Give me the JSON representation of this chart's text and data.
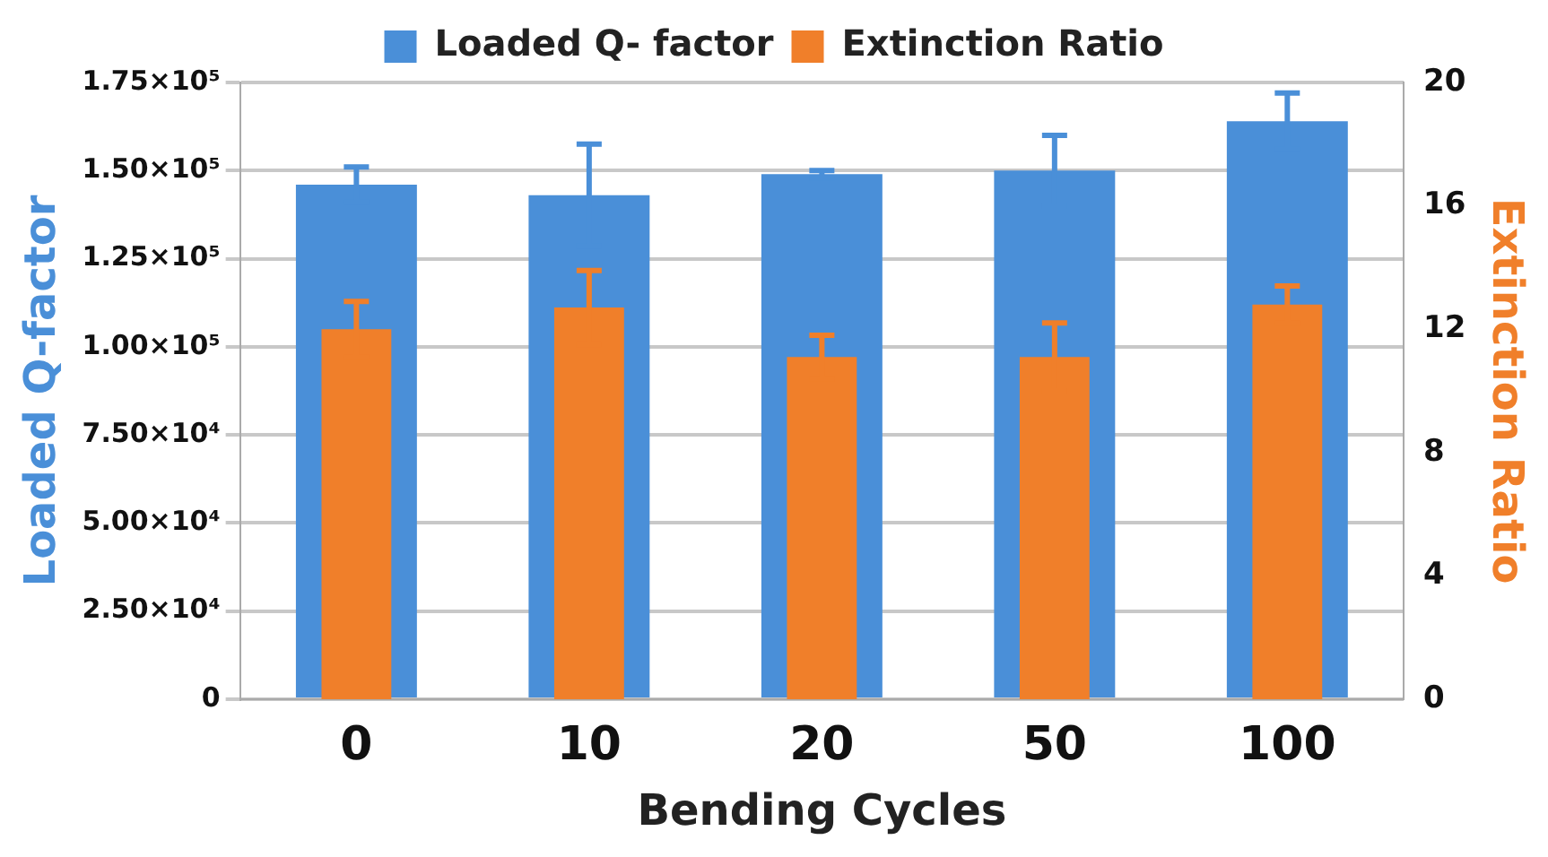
{
  "chart_data": {
    "type": "bar",
    "xlabel": "Bending Cycles",
    "ylabel": "Loaded Q-factor",
    "y2label": "Extinction Ratio",
    "categories": [
      "0",
      "10",
      "20",
      "50",
      "100"
    ],
    "series": [
      {
        "name": "Loaded Q- factor",
        "color": "#4a8fd8",
        "values": [
          146000,
          143000,
          149000,
          150000,
          164000
        ],
        "errors": [
          5000,
          14500,
          1000,
          10000,
          8000
        ]
      },
      {
        "name": "Extinction Ratio",
        "color": "#f07f2a",
        "axis": "y2",
        "values": [
          12.0,
          12.7,
          11.1,
          11.1,
          12.8
        ],
        "errors": [
          0.9,
          1.2,
          0.7,
          1.1,
          0.6
        ]
      }
    ],
    "ylim": [
      0,
      175000
    ],
    "yticks": [
      {
        "value": 0,
        "label": "0"
      },
      {
        "value": 25000,
        "label": "2.50×10⁴"
      },
      {
        "value": 50000,
        "label": "5.00×10⁴"
      },
      {
        "value": 75000,
        "label": "7.50×10⁴"
      },
      {
        "value": 100000,
        "label": "1.00×10⁵"
      },
      {
        "value": 125000,
        "label": "1.25×10⁵"
      },
      {
        "value": 150000,
        "label": "1.50×10⁵"
      },
      {
        "value": 175000,
        "label": "1.75×10⁵"
      }
    ],
    "y2lim": [
      0,
      20
    ],
    "y2ticks": [
      0,
      4,
      8,
      12,
      16,
      20
    ],
    "grid": "y",
    "legend": "top"
  }
}
